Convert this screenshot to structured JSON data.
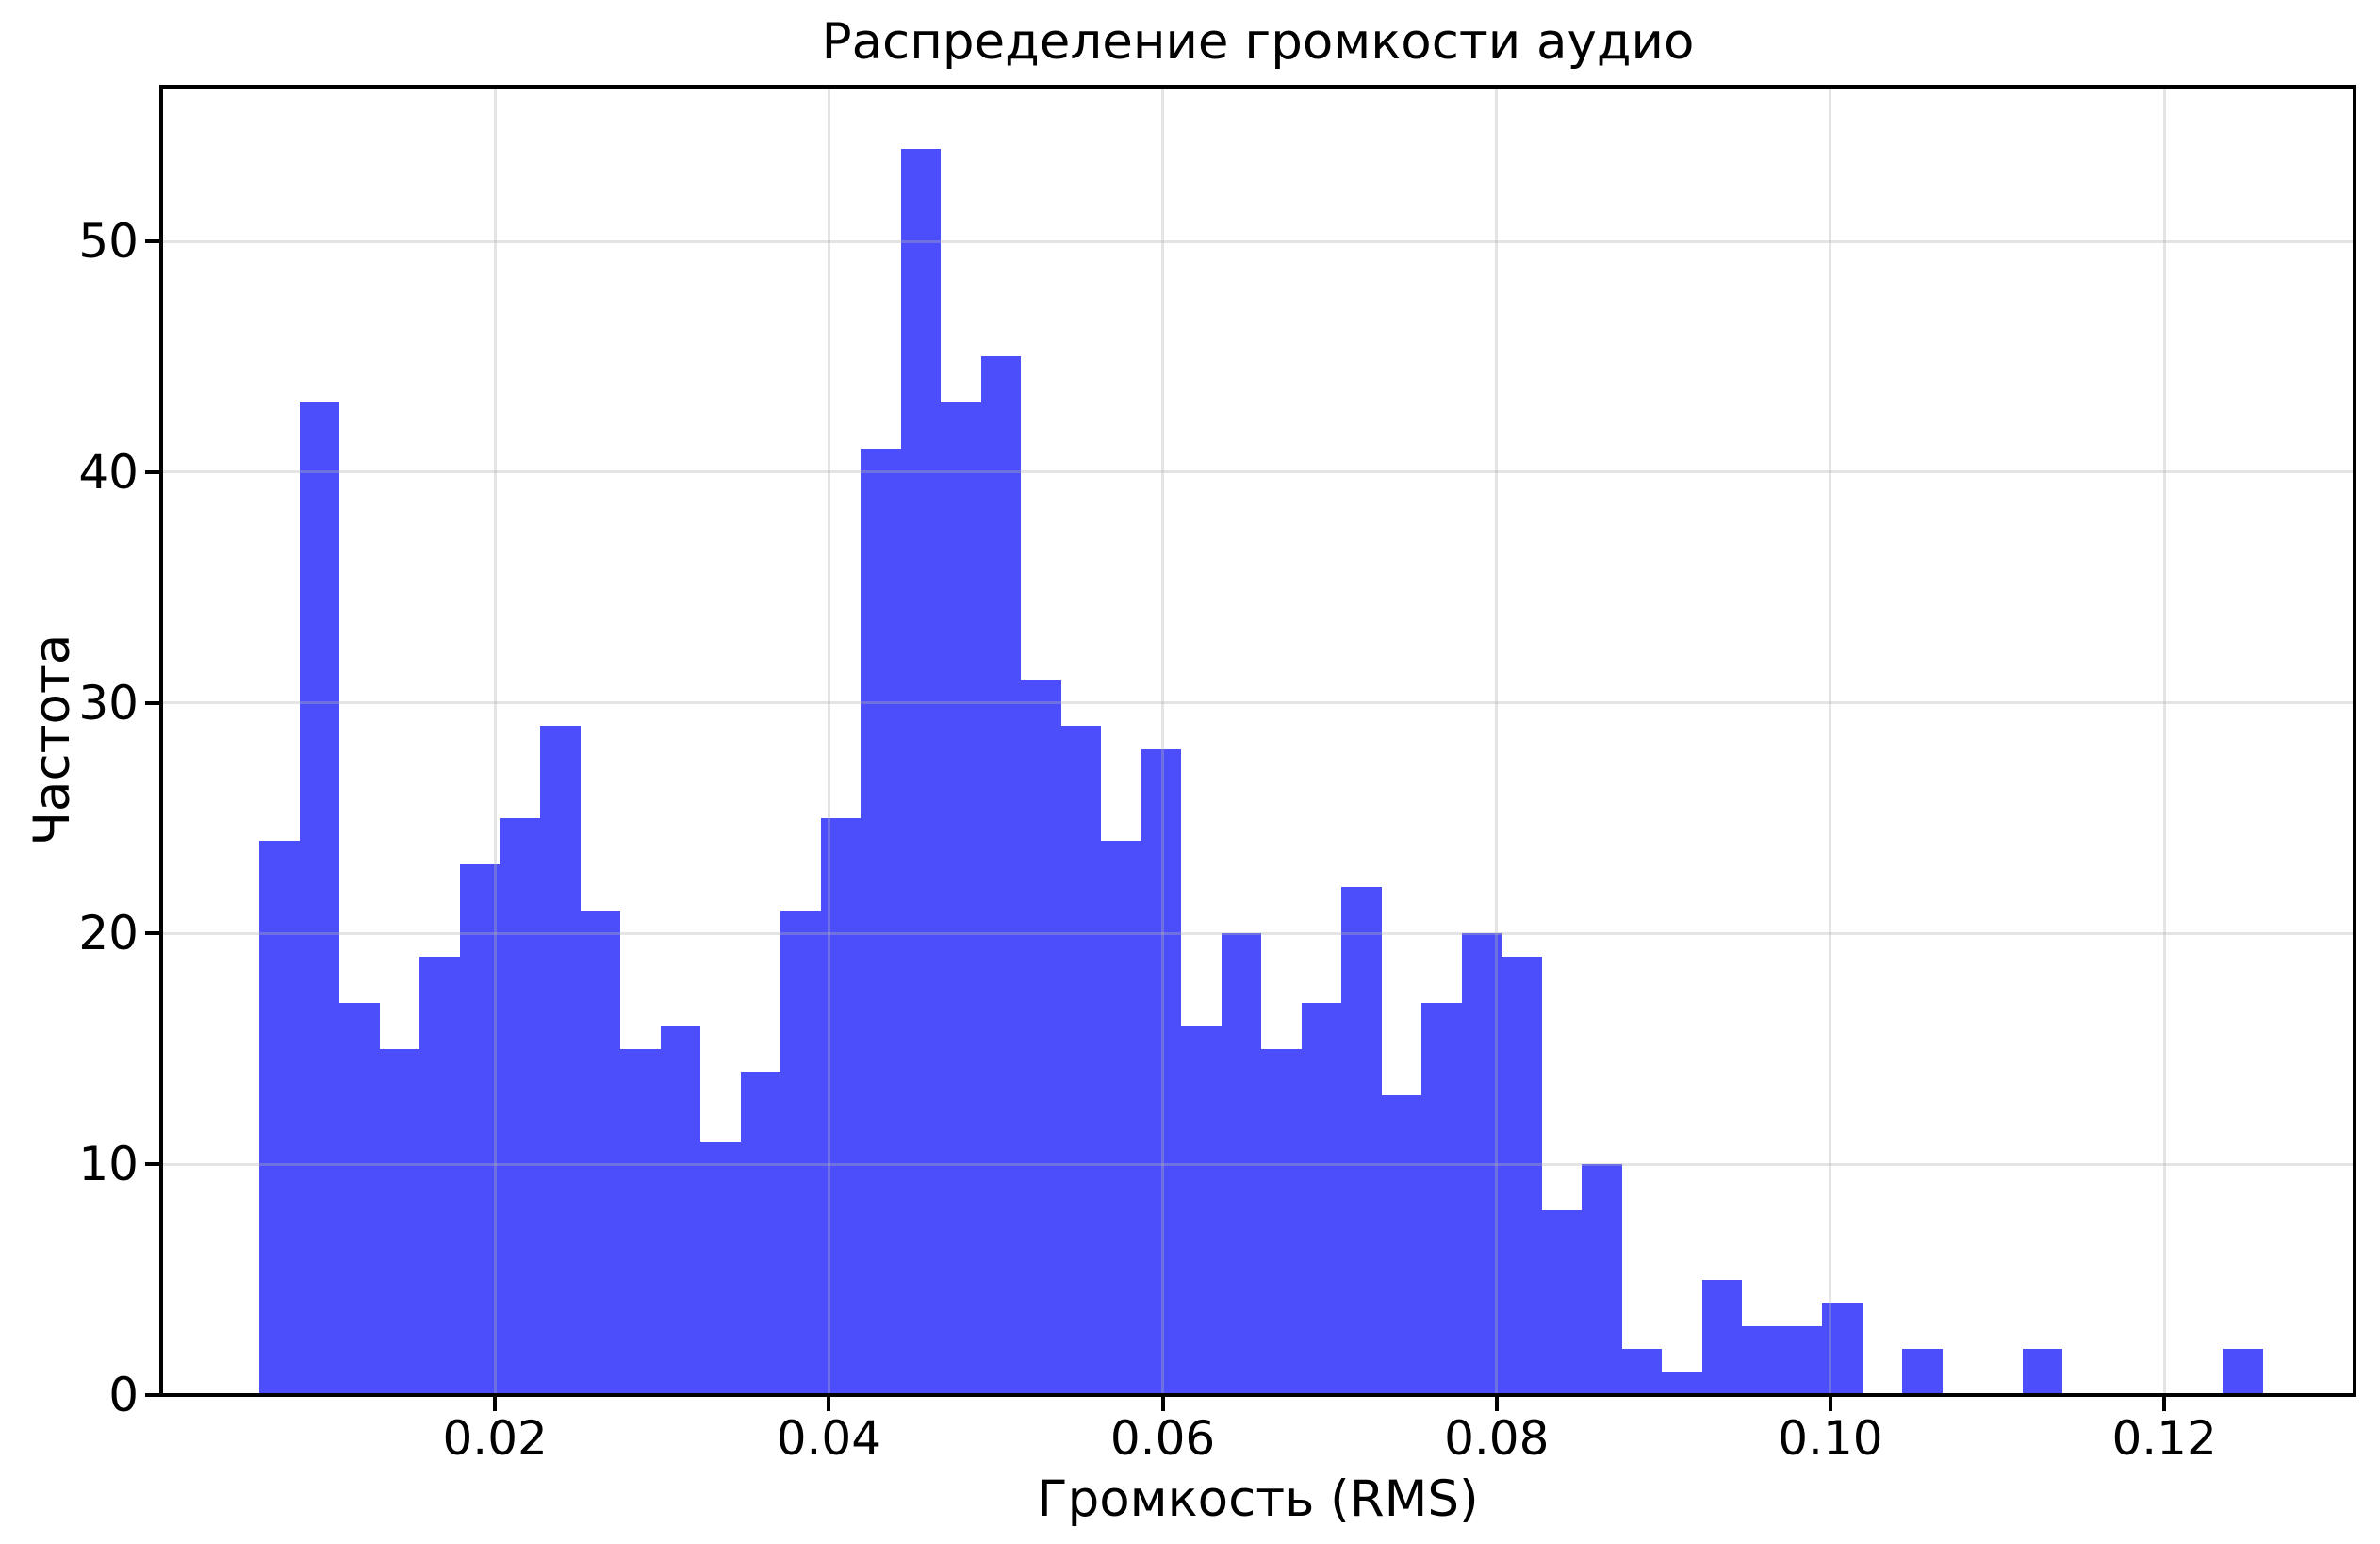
{
  "title": "Распределение громкости аудио",
  "xlabel": "Громкость (RMS)",
  "ylabel": "Частота",
  "colors": {
    "bar": "#4c4efc",
    "grid": "rgba(178,178,178,0.35)",
    "axis": "#000000",
    "background": "#ffffff"
  },
  "chart_data": {
    "type": "bar",
    "subtype": "histogram",
    "title": "Распределение громкости аудио",
    "xlabel": "Громкость (RMS)",
    "ylabel": "Частота",
    "bin_start": 0.0059,
    "bin_width": 0.0024,
    "values": [
      24,
      43,
      17,
      15,
      19,
      23,
      25,
      29,
      21,
      15,
      16,
      11,
      14,
      21,
      25,
      41,
      54,
      43,
      45,
      31,
      29,
      24,
      28,
      16,
      20,
      15,
      17,
      22,
      13,
      17,
      20,
      19,
      8,
      10,
      2,
      1,
      5,
      3,
      3,
      4,
      0,
      2,
      0,
      0,
      2,
      0,
      0,
      0,
      0,
      2
    ],
    "xlim": [
      0.0,
      0.1314
    ],
    "ylim": [
      0,
      56.7
    ],
    "x_ticks": [
      0.02,
      0.04,
      0.06,
      0.08,
      0.1,
      0.12
    ],
    "x_tick_labels": [
      "0.02",
      "0.04",
      "0.06",
      "0.08",
      "0.10",
      "0.12"
    ],
    "y_ticks": [
      0,
      10,
      20,
      30,
      40,
      50
    ],
    "y_tick_labels": [
      "0",
      "10",
      "20",
      "30",
      "40",
      "50"
    ],
    "grid": true,
    "legend": null
  }
}
